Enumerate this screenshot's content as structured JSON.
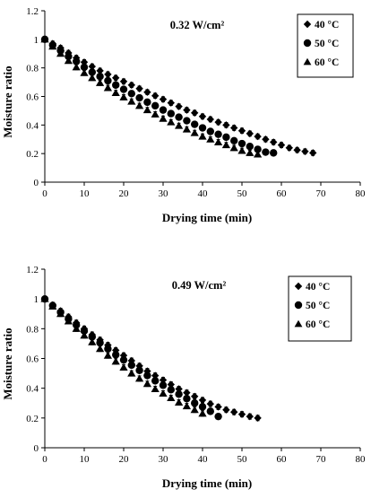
{
  "chart_data": [
    {
      "type": "scatter",
      "annotation": "0.32 W/cm²",
      "xlabel": "Drying time (min)",
      "ylabel": "Moisture ratio",
      "xlim": [
        0,
        80
      ],
      "ylim": [
        0,
        1.2
      ],
      "xticks": [
        "0",
        "10",
        "20",
        "30",
        "40",
        "50",
        "60",
        "70",
        "80"
      ],
      "yticks": [
        "0",
        "0.2",
        "0.4",
        "0.6",
        "0.8",
        "1",
        "1.2"
      ],
      "grid": false,
      "legend_position": "top-right",
      "error_bars": true,
      "series": [
        {
          "name": "40 °C",
          "marker": "diamond",
          "x": [
            0,
            2,
            4,
            6,
            8,
            10,
            12,
            14,
            16,
            18,
            20,
            22,
            24,
            26,
            28,
            30,
            32,
            34,
            36,
            38,
            40,
            42,
            44,
            46,
            48,
            50,
            52,
            54,
            56,
            58,
            60,
            62,
            64,
            66,
            68
          ],
          "y": [
            1.0,
            0.97,
            0.94,
            0.905,
            0.87,
            0.84,
            0.81,
            0.78,
            0.755,
            0.73,
            0.705,
            0.68,
            0.655,
            0.63,
            0.605,
            0.58,
            0.555,
            0.53,
            0.505,
            0.485,
            0.46,
            0.44,
            0.42,
            0.4,
            0.38,
            0.36,
            0.34,
            0.32,
            0.3,
            0.28,
            0.26,
            0.24,
            0.225,
            0.215,
            0.205
          ]
        },
        {
          "name": "50 °C",
          "marker": "circle",
          "x": [
            0,
            2,
            4,
            6,
            8,
            10,
            12,
            14,
            16,
            18,
            20,
            22,
            24,
            26,
            28,
            30,
            32,
            34,
            36,
            38,
            40,
            42,
            44,
            46,
            48,
            50,
            52,
            54,
            56,
            58
          ],
          "y": [
            1.0,
            0.96,
            0.92,
            0.88,
            0.845,
            0.805,
            0.77,
            0.74,
            0.71,
            0.68,
            0.65,
            0.62,
            0.59,
            0.56,
            0.535,
            0.505,
            0.48,
            0.455,
            0.43,
            0.405,
            0.38,
            0.355,
            0.335,
            0.315,
            0.29,
            0.27,
            0.25,
            0.23,
            0.21,
            0.205
          ]
        },
        {
          "name": "60 °C",
          "marker": "triangle",
          "x": [
            0,
            2,
            4,
            6,
            8,
            10,
            12,
            14,
            16,
            18,
            20,
            22,
            24,
            26,
            28,
            30,
            32,
            34,
            36,
            38,
            40,
            42,
            44,
            46,
            48,
            50,
            52,
            54
          ],
          "y": [
            1.0,
            0.95,
            0.9,
            0.85,
            0.805,
            0.765,
            0.73,
            0.695,
            0.66,
            0.625,
            0.595,
            0.565,
            0.535,
            0.505,
            0.475,
            0.445,
            0.42,
            0.395,
            0.37,
            0.345,
            0.32,
            0.3,
            0.28,
            0.26,
            0.24,
            0.22,
            0.205,
            0.195
          ]
        }
      ]
    },
    {
      "type": "scatter",
      "annotation": "0.49 W/cm²",
      "xlabel": "Drying time (min)",
      "ylabel": "Moisture ratio",
      "xlim": [
        0,
        80
      ],
      "ylim": [
        0,
        1.2
      ],
      "xticks": [
        "0",
        "10",
        "20",
        "30",
        "40",
        "50",
        "60",
        "70",
        "80"
      ],
      "yticks": [
        "0",
        "0.2",
        "0.4",
        "0.6",
        "0.8",
        "1",
        "1.2"
      ],
      "grid": false,
      "legend_position": "top-right",
      "error_bars": true,
      "series": [
        {
          "name": "40 °C",
          "marker": "diamond",
          "x": [
            0,
            2,
            4,
            6,
            8,
            10,
            12,
            14,
            16,
            18,
            20,
            22,
            24,
            26,
            28,
            30,
            32,
            34,
            36,
            38,
            40,
            42,
            44,
            46,
            48,
            50,
            52,
            54
          ],
          "y": [
            1.0,
            0.96,
            0.92,
            0.88,
            0.84,
            0.8,
            0.76,
            0.725,
            0.69,
            0.655,
            0.62,
            0.585,
            0.55,
            0.515,
            0.485,
            0.455,
            0.425,
            0.395,
            0.37,
            0.345,
            0.32,
            0.295,
            0.275,
            0.255,
            0.24,
            0.225,
            0.21,
            0.2
          ]
        },
        {
          "name": "50 °C",
          "marker": "circle",
          "x": [
            0,
            2,
            4,
            6,
            8,
            10,
            12,
            14,
            16,
            18,
            20,
            22,
            24,
            26,
            28,
            30,
            32,
            34,
            36,
            38,
            40,
            42,
            44
          ],
          "y": [
            1.0,
            0.955,
            0.91,
            0.865,
            0.825,
            0.785,
            0.745,
            0.705,
            0.665,
            0.625,
            0.59,
            0.555,
            0.52,
            0.485,
            0.45,
            0.42,
            0.39,
            0.36,
            0.33,
            0.3,
            0.275,
            0.245,
            0.21
          ]
        },
        {
          "name": "60 °C",
          "marker": "triangle",
          "x": [
            0,
            2,
            4,
            6,
            8,
            10,
            12,
            14,
            16,
            18,
            20,
            22,
            24,
            26,
            28,
            30,
            32,
            34,
            36,
            38,
            40
          ],
          "y": [
            1.0,
            0.95,
            0.9,
            0.85,
            0.8,
            0.755,
            0.71,
            0.665,
            0.62,
            0.58,
            0.54,
            0.5,
            0.465,
            0.43,
            0.395,
            0.365,
            0.335,
            0.305,
            0.28,
            0.255,
            0.23
          ]
        }
      ]
    }
  ]
}
